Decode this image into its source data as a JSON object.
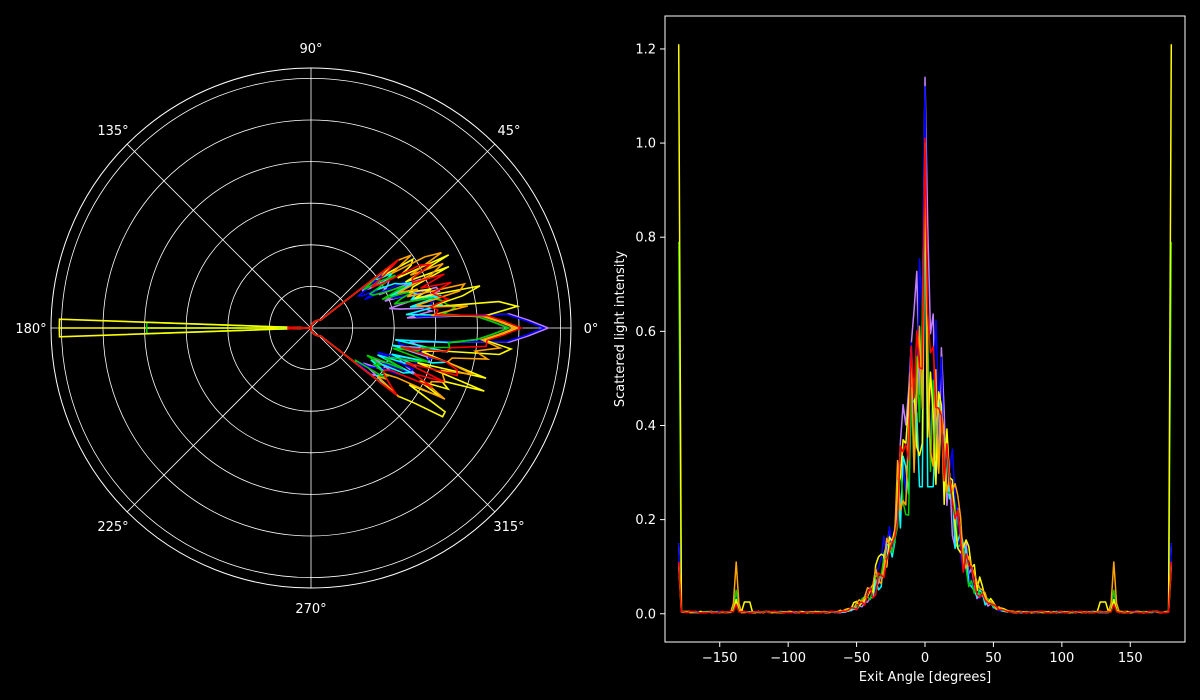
{
  "chart_data": [
    {
      "type": "polar-line",
      "theta_ticks": [
        "0°",
        "45°",
        "90°",
        "135°",
        "180°",
        "225°",
        "270°",
        "315°"
      ],
      "radial_rings": [
        0.2,
        0.4,
        0.6,
        0.8,
        1.0,
        1.2
      ],
      "rmax": 1.25,
      "grid": true,
      "series_colors": [
        "#c080ff",
        "#0000ff",
        "#00ffff",
        "#00cc00",
        "#ffff00",
        "#ffa500",
        "#ff0000"
      ],
      "peak_r": [
        1.14,
        1.12,
        0.95,
        0.95,
        1.0,
        0.98,
        1.01
      ],
      "lobe_r": [
        0.45,
        0.42,
        0.45,
        0.42,
        0.72,
        0.64,
        0.55
      ],
      "back_r": [
        0.15,
        0.15,
        0.15,
        0.79,
        1.21,
        0.11,
        0.11
      ]
    },
    {
      "type": "line",
      "xlabel": "Exit Angle [degrees]",
      "ylabel": "Scattered light intensity",
      "xlim": [
        -190,
        190
      ],
      "ylim": [
        -0.06,
        1.27
      ],
      "xticks": [
        -150,
        -100,
        -50,
        0,
        50,
        100,
        150
      ],
      "xtick_labels": [
        "−150",
        "−100",
        "−50",
        "0",
        "50",
        "100",
        "150"
      ],
      "yticks": [
        0.0,
        0.2,
        0.4,
        0.6,
        0.8,
        1.0,
        1.2
      ],
      "ytick_labels": [
        "0.0",
        "0.2",
        "0.4",
        "0.6",
        "0.8",
        "1.0",
        "1.2"
      ],
      "grid": false,
      "series": [
        {
          "color": "#c080ff",
          "peak": 1.14,
          "core": 0.85,
          "width": 20,
          "edge": 0.15,
          "side": 0.03
        },
        {
          "color": "#0000ff",
          "peak": 1.12,
          "core": 0.82,
          "width": 21,
          "edge": 0.15,
          "side": 0.04
        },
        {
          "color": "#00ffff",
          "peak": 0.95,
          "core": 0.62,
          "width": 22,
          "edge": 0.1,
          "side": 0.03,
          "dip": 0.27
        },
        {
          "color": "#00cc00",
          "peak": 0.95,
          "core": 0.65,
          "width": 22,
          "edge": 0.79,
          "side": 0.05
        },
        {
          "color": "#ffff00",
          "peak": 1.0,
          "core": 0.7,
          "width": 23,
          "edge": 1.21,
          "side": 0.03
        },
        {
          "color": "#ffa500",
          "peak": 0.98,
          "core": 0.72,
          "width": 22,
          "edge": 0.11,
          "side": 0.11
        },
        {
          "color": "#ff0000",
          "peak": 1.01,
          "core": 0.75,
          "width": 21,
          "edge": 0.11,
          "side": 0.02
        }
      ]
    }
  ]
}
